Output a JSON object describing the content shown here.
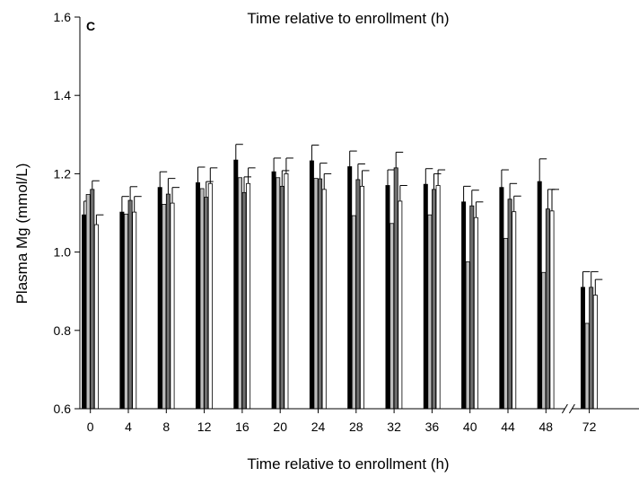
{
  "chart_data": {
    "type": "bar",
    "panel_label": "C",
    "title": "Time relative to enrollment (h)",
    "xlabel": "Time relative to enrollment (h)",
    "ylabel": "Plasma Mg (mmol/L)",
    "ylim": [
      0.6,
      1.6
    ],
    "yticks": [
      "0.6",
      "0.8",
      "1.0",
      "1.2",
      "1.4",
      "1.6"
    ],
    "categories": [
      "0",
      "4",
      "8",
      "12",
      "16",
      "20",
      "24",
      "28",
      "32",
      "36",
      "40",
      "44",
      "48",
      "72"
    ],
    "axis_break_before": "72",
    "grid": false,
    "series": [
      {
        "color": "#000000",
        "values": [
          1.095,
          1.102,
          1.165,
          1.177,
          1.235,
          1.205,
          1.233,
          1.218,
          1.17,
          1.173,
          1.128,
          1.165,
          1.18,
          0.91
        ],
        "errors": [
          0.035,
          0.04,
          0.04,
          0.04,
          0.04,
          0.035,
          0.04,
          0.04,
          0.04,
          0.04,
          0.04,
          0.045,
          0.058,
          0.04
        ]
      },
      {
        "color": "#bcbcbc",
        "values": [
          1.147,
          1.097,
          1.122,
          1.162,
          1.19,
          1.19,
          1.188,
          1.093,
          1.073,
          1.095,
          0.975,
          1.035,
          0.948,
          0.818
        ]
      },
      {
        "color": "#6e6e6e",
        "values": [
          1.16,
          1.132,
          1.148,
          1.14,
          1.152,
          1.168,
          1.187,
          1.185,
          1.215,
          1.16,
          1.118,
          1.135,
          1.11,
          0.91
        ],
        "errors": [
          0.022,
          0.035,
          0.04,
          0.04,
          0.04,
          0.04,
          0.04,
          0.04,
          0.04,
          0.04,
          0.04,
          0.04,
          0.05,
          0.04
        ]
      },
      {
        "color": "#ffffff",
        "values": [
          1.07,
          1.102,
          1.125,
          1.175,
          1.175,
          1.2,
          1.16,
          1.168,
          1.13,
          1.17,
          1.088,
          1.103,
          1.105,
          0.89
        ],
        "errors": [
          0.025,
          0.04,
          0.04,
          0.04,
          0.04,
          0.04,
          0.04,
          0.04,
          0.04,
          0.04,
          0.04,
          0.04,
          0.055,
          0.04
        ]
      }
    ]
  }
}
